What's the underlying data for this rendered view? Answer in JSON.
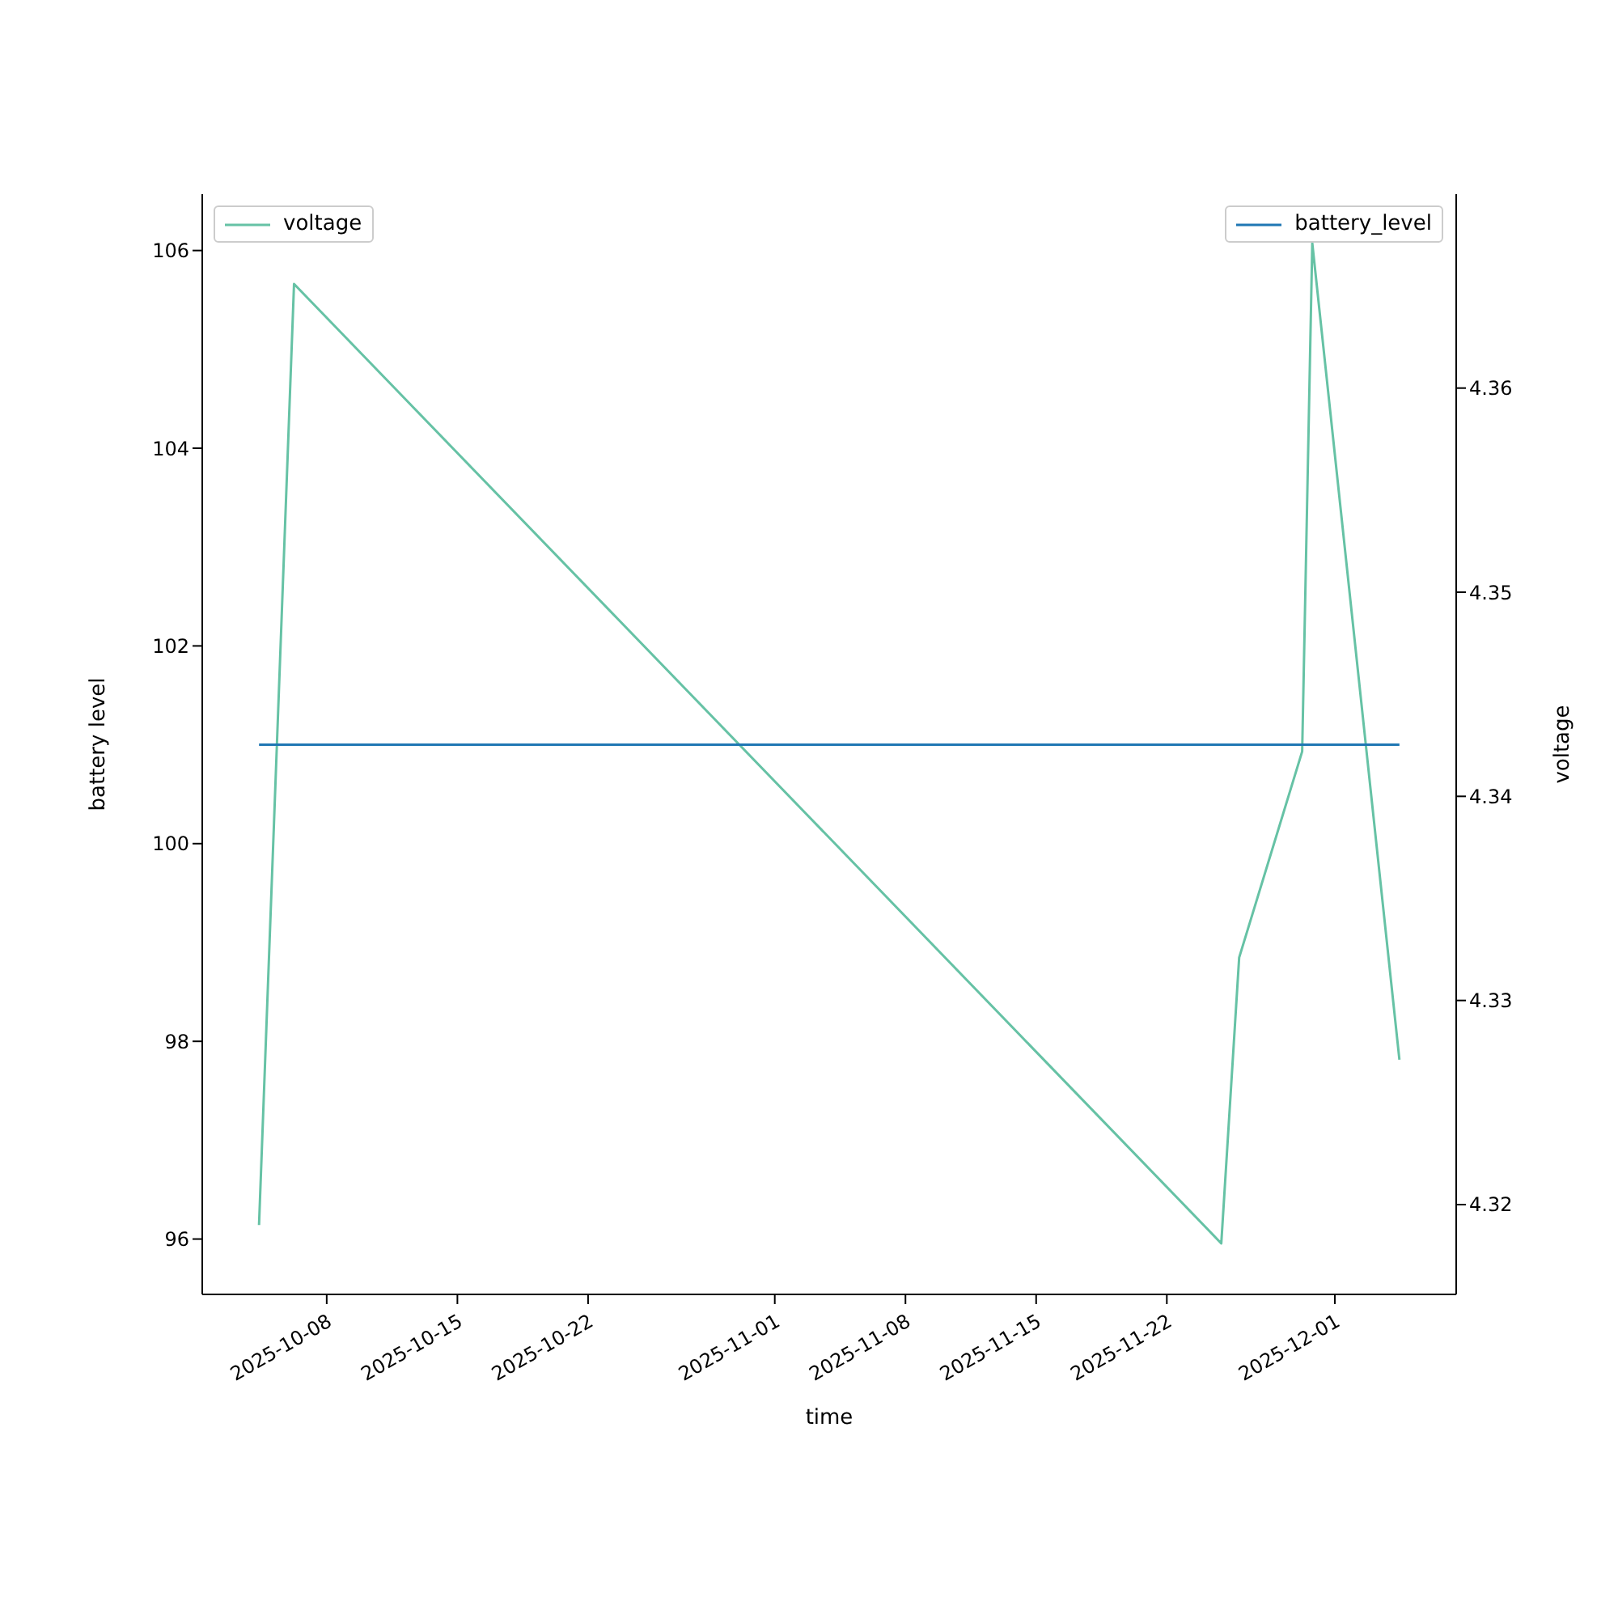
{
  "chart_data": {
    "type": "line",
    "xlabel": "time",
    "ylabel": "battery level",
    "y2label": "voltage",
    "xlim": [
      "2025-10-01T08:00",
      "2025-12-07T12:00"
    ],
    "xticks": [
      "2025-10-08",
      "2025-10-15",
      "2025-10-22",
      "2025-11-01",
      "2025-11-08",
      "2025-11-15",
      "2025-11-22",
      "2025-12-01"
    ],
    "ylim": [
      95.44,
      106.57
    ],
    "yticks": [
      96,
      98,
      100,
      102,
      104,
      106
    ],
    "y2lim": [
      4.3156,
      4.3695
    ],
    "y2ticks": [
      4.32,
      4.33,
      4.34,
      4.35,
      4.36
    ],
    "legend": "top left",
    "grid": false,
    "series": [
      {
        "name": "voltage",
        "color": "#66c2a5",
        "axis": "y2",
        "x": [
          "2025-10-04T09:00",
          "2025-10-06T06:00",
          "2025-11-24T22:00",
          "2025-11-25T21:00",
          "2025-11-29T06:00",
          "2025-11-29T19:00",
          "2025-12-04T11:00"
        ],
        "values": [
          4.319,
          4.3651,
          4.3181,
          4.3321,
          4.3422,
          4.3671,
          4.3271
        ]
      },
      {
        "name": "battery_level",
        "color": "#1f77b4",
        "axis": "y",
        "x": [
          "2025-10-04T09:00",
          "2025-10-06T06:00",
          "2025-11-24T22:00",
          "2025-11-25T21:00",
          "2025-11-29T06:00",
          "2025-11-29T19:00",
          "2025-12-04T11:00"
        ],
        "values": [
          101,
          101,
          101,
          101,
          101,
          101,
          101
        ]
      }
    ]
  }
}
